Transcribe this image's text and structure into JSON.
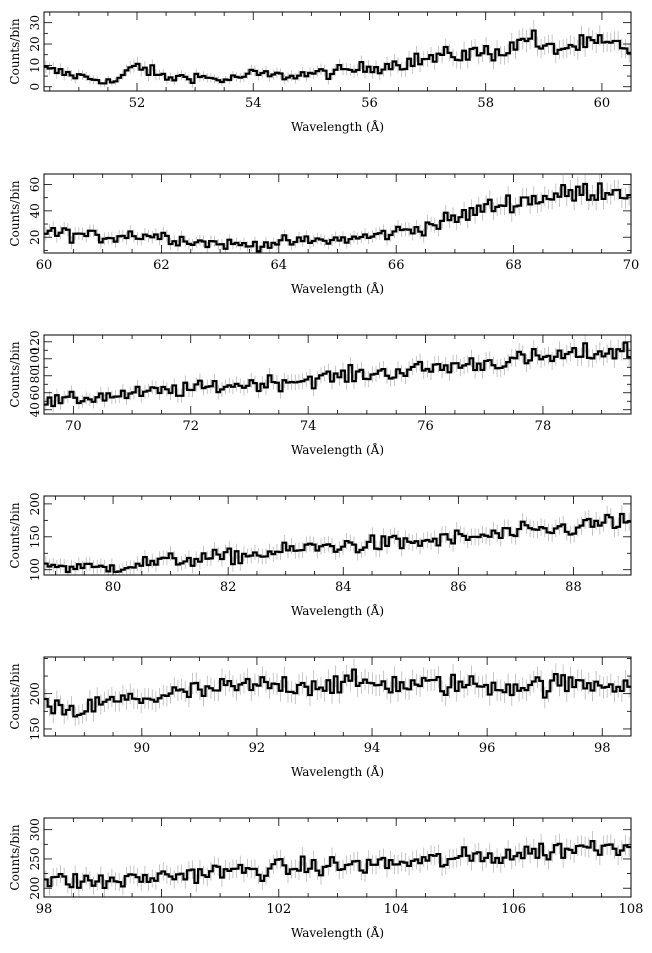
{
  "chart_data": [
    {
      "type": "line",
      "style": "histogram-step-with-error-bars",
      "xlabel": "Wavelength (Å)",
      "ylabel": "Counts/bin",
      "xlim": [
        50.4,
        60.5
      ],
      "ylim": [
        -2,
        35
      ],
      "xticks": [
        52,
        54,
        56,
        58,
        60
      ],
      "yticks": [
        0,
        10,
        20,
        30
      ],
      "series": [
        {
          "x": [
            50.4,
            51.0,
            51.6,
            52.0,
            52.5,
            53.0,
            53.5,
            54.0,
            54.5,
            55.0,
            55.5,
            56.0,
            56.5,
            57.0,
            57.5,
            58.0,
            58.5,
            58.7,
            59.0,
            59.5,
            60.0,
            60.5
          ],
          "y": [
            8,
            5,
            2,
            10,
            4,
            5,
            3,
            6,
            5,
            6,
            7,
            9,
            11,
            13,
            15,
            16,
            18,
            25,
            17,
            19,
            20,
            18
          ]
        }
      ]
    },
    {
      "type": "line",
      "style": "histogram-step-with-error-bars",
      "xlabel": "Wavelength (Å)",
      "ylabel": "Counts/bin",
      "xlim": [
        60,
        70
      ],
      "ylim": [
        8,
        68
      ],
      "xticks": [
        60,
        62,
        64,
        66,
        68,
        70
      ],
      "yticks": [
        20,
        40,
        60
      ],
      "series": [
        {
          "x": [
            60,
            60.5,
            61,
            61.5,
            62,
            62.5,
            63,
            63.5,
            64,
            64.5,
            65,
            65.5,
            66,
            66.5,
            67,
            67.5,
            68,
            68.5,
            69,
            69.5,
            70
          ],
          "y": [
            24,
            22,
            20,
            22,
            21,
            17,
            15,
            14,
            16,
            17,
            18,
            20,
            24,
            28,
            34,
            42,
            47,
            50,
            53,
            56,
            55
          ]
        }
      ]
    },
    {
      "type": "line",
      "style": "histogram-step-with-error-bars",
      "xlabel": "Wavelength (Å)",
      "ylabel": "Counts/bin",
      "xlim": [
        69.5,
        79.5
      ],
      "ylim": [
        35,
        128
      ],
      "xticks": [
        70,
        72,
        74,
        76,
        78
      ],
      "yticks": [
        40,
        60,
        80,
        100,
        120
      ],
      "series": [
        {
          "x": [
            69.5,
            70,
            70.5,
            71,
            71.5,
            72,
            72.5,
            73,
            73.5,
            74,
            74.5,
            75,
            75.5,
            76,
            76.5,
            77,
            77.5,
            78,
            78.5,
            79,
            79.5
          ],
          "y": [
            48,
            52,
            56,
            58,
            62,
            64,
            68,
            70,
            73,
            76,
            79,
            82,
            85,
            88,
            92,
            95,
            98,
            101,
            104,
            108,
            110
          ]
        }
      ]
    },
    {
      "type": "line",
      "style": "histogram-step-with-error-bars",
      "xlabel": "Wavelength (Å)",
      "ylabel": "Counts/bin",
      "xlim": [
        78.8,
        89
      ],
      "ylim": [
        92,
        212
      ],
      "xticks": [
        80,
        82,
        84,
        86,
        88
      ],
      "yticks": [
        100,
        150,
        200
      ],
      "series": [
        {
          "x": [
            78.8,
            79.3,
            79.8,
            80.3,
            80.8,
            81.3,
            81.8,
            82.3,
            82.8,
            83.3,
            83.8,
            84.3,
            84.8,
            85.3,
            85.8,
            86.3,
            86.8,
            87.3,
            87.8,
            88.3,
            88.8,
            89
          ],
          "y": [
            108,
            104,
            102,
            108,
            112,
            116,
            118,
            122,
            126,
            132,
            136,
            138,
            140,
            142,
            146,
            150,
            154,
            158,
            162,
            168,
            175,
            170
          ]
        }
      ]
    },
    {
      "type": "line",
      "style": "histogram-step-with-error-bars",
      "xlabel": "Wavelength (Å)",
      "ylabel": "Counts/bin",
      "xlim": [
        88.3,
        98.5
      ],
      "ylim": [
        140,
        252
      ],
      "xticks": [
        90,
        92,
        94,
        96,
        98
      ],
      "yticks": [
        150,
        200
      ],
      "series": [
        {
          "x": [
            88.3,
            88.8,
            89.3,
            89.8,
            90.3,
            90.8,
            91.3,
            91.8,
            92.3,
            92.8,
            93.3,
            93.8,
            94.3,
            94.8,
            95.3,
            95.8,
            96.3,
            96.8,
            97.3,
            97.8,
            98.3,
            98.5
          ],
          "y": [
            180,
            172,
            186,
            192,
            196,
            202,
            206,
            210,
            212,
            213,
            214,
            215,
            214,
            212,
            213,
            212,
            211,
            212,
            213,
            214,
            215,
            214
          ]
        }
      ]
    },
    {
      "type": "line",
      "style": "histogram-step-with-error-bars",
      "xlabel": "Wavelength (Å)",
      "ylabel": "Counts/bin",
      "xlim": [
        98,
        108
      ],
      "ylim": [
        185,
        320
      ],
      "xticks": [
        98,
        100,
        102,
        104,
        106,
        108
      ],
      "yticks": [
        200,
        250,
        300
      ],
      "series": [
        {
          "x": [
            98,
            98.5,
            99,
            99.5,
            100,
            100.5,
            101,
            101.5,
            102,
            102.5,
            103,
            103.5,
            104,
            104.5,
            105,
            105.5,
            106,
            106.5,
            107,
            107.5,
            108
          ],
          "y": [
            214,
            212,
            211,
            215,
            220,
            225,
            228,
            230,
            233,
            236,
            238,
            240,
            243,
            246,
            250,
            254,
            258,
            263,
            268,
            272,
            276
          ]
        }
      ]
    }
  ]
}
